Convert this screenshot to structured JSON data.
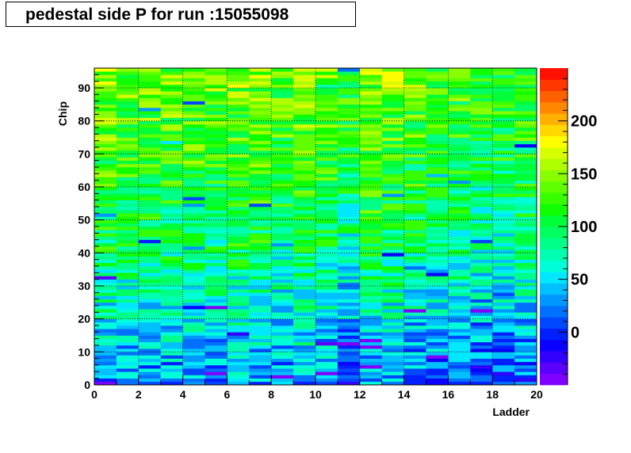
{
  "title": "pedestal side P for run :15055098",
  "chart_data": {
    "type": "heatmap",
    "title": "pedestal side P for run :15055098",
    "xlabel": "Ladder",
    "ylabel": "Chip",
    "xlim": [
      0,
      20
    ],
    "ylim": [
      0,
      96
    ],
    "x_bins": 20,
    "y_bins": 96,
    "x_ticks": [
      "0",
      "2",
      "4",
      "6",
      "8",
      "10",
      "12",
      "14",
      "16",
      "18",
      "20"
    ],
    "y_ticks": [
      "0",
      "10",
      "20",
      "30",
      "40",
      "50",
      "60",
      "70",
      "80",
      "90"
    ],
    "grid": true,
    "colorbar": {
      "zlim": [
        -50,
        250
      ],
      "ticks": [
        "0",
        "50",
        "100",
        "150",
        "200"
      ],
      "tick_values": [
        0,
        50,
        100,
        150,
        200
      ]
    },
    "palette": [
      "#7f00ff",
      "#5a00ff",
      "#3200ff",
      "#0a00ff",
      "#0020ff",
      "#0048ff",
      "#0070ff",
      "#0098ff",
      "#00c0ff",
      "#00e8ff",
      "#00ffd8",
      "#00ffb0",
      "#00ff88",
      "#00ff60",
      "#00ff38",
      "#10ff00",
      "#38ff00",
      "#60ff00",
      "#88ff00",
      "#b0ff00",
      "#d8ff00",
      "#ffff00",
      "#ffd800",
      "#ffb000",
      "#ff8800",
      "#ff6000",
      "#ff3800",
      "#ff1000"
    ],
    "values_note": ""
  }
}
